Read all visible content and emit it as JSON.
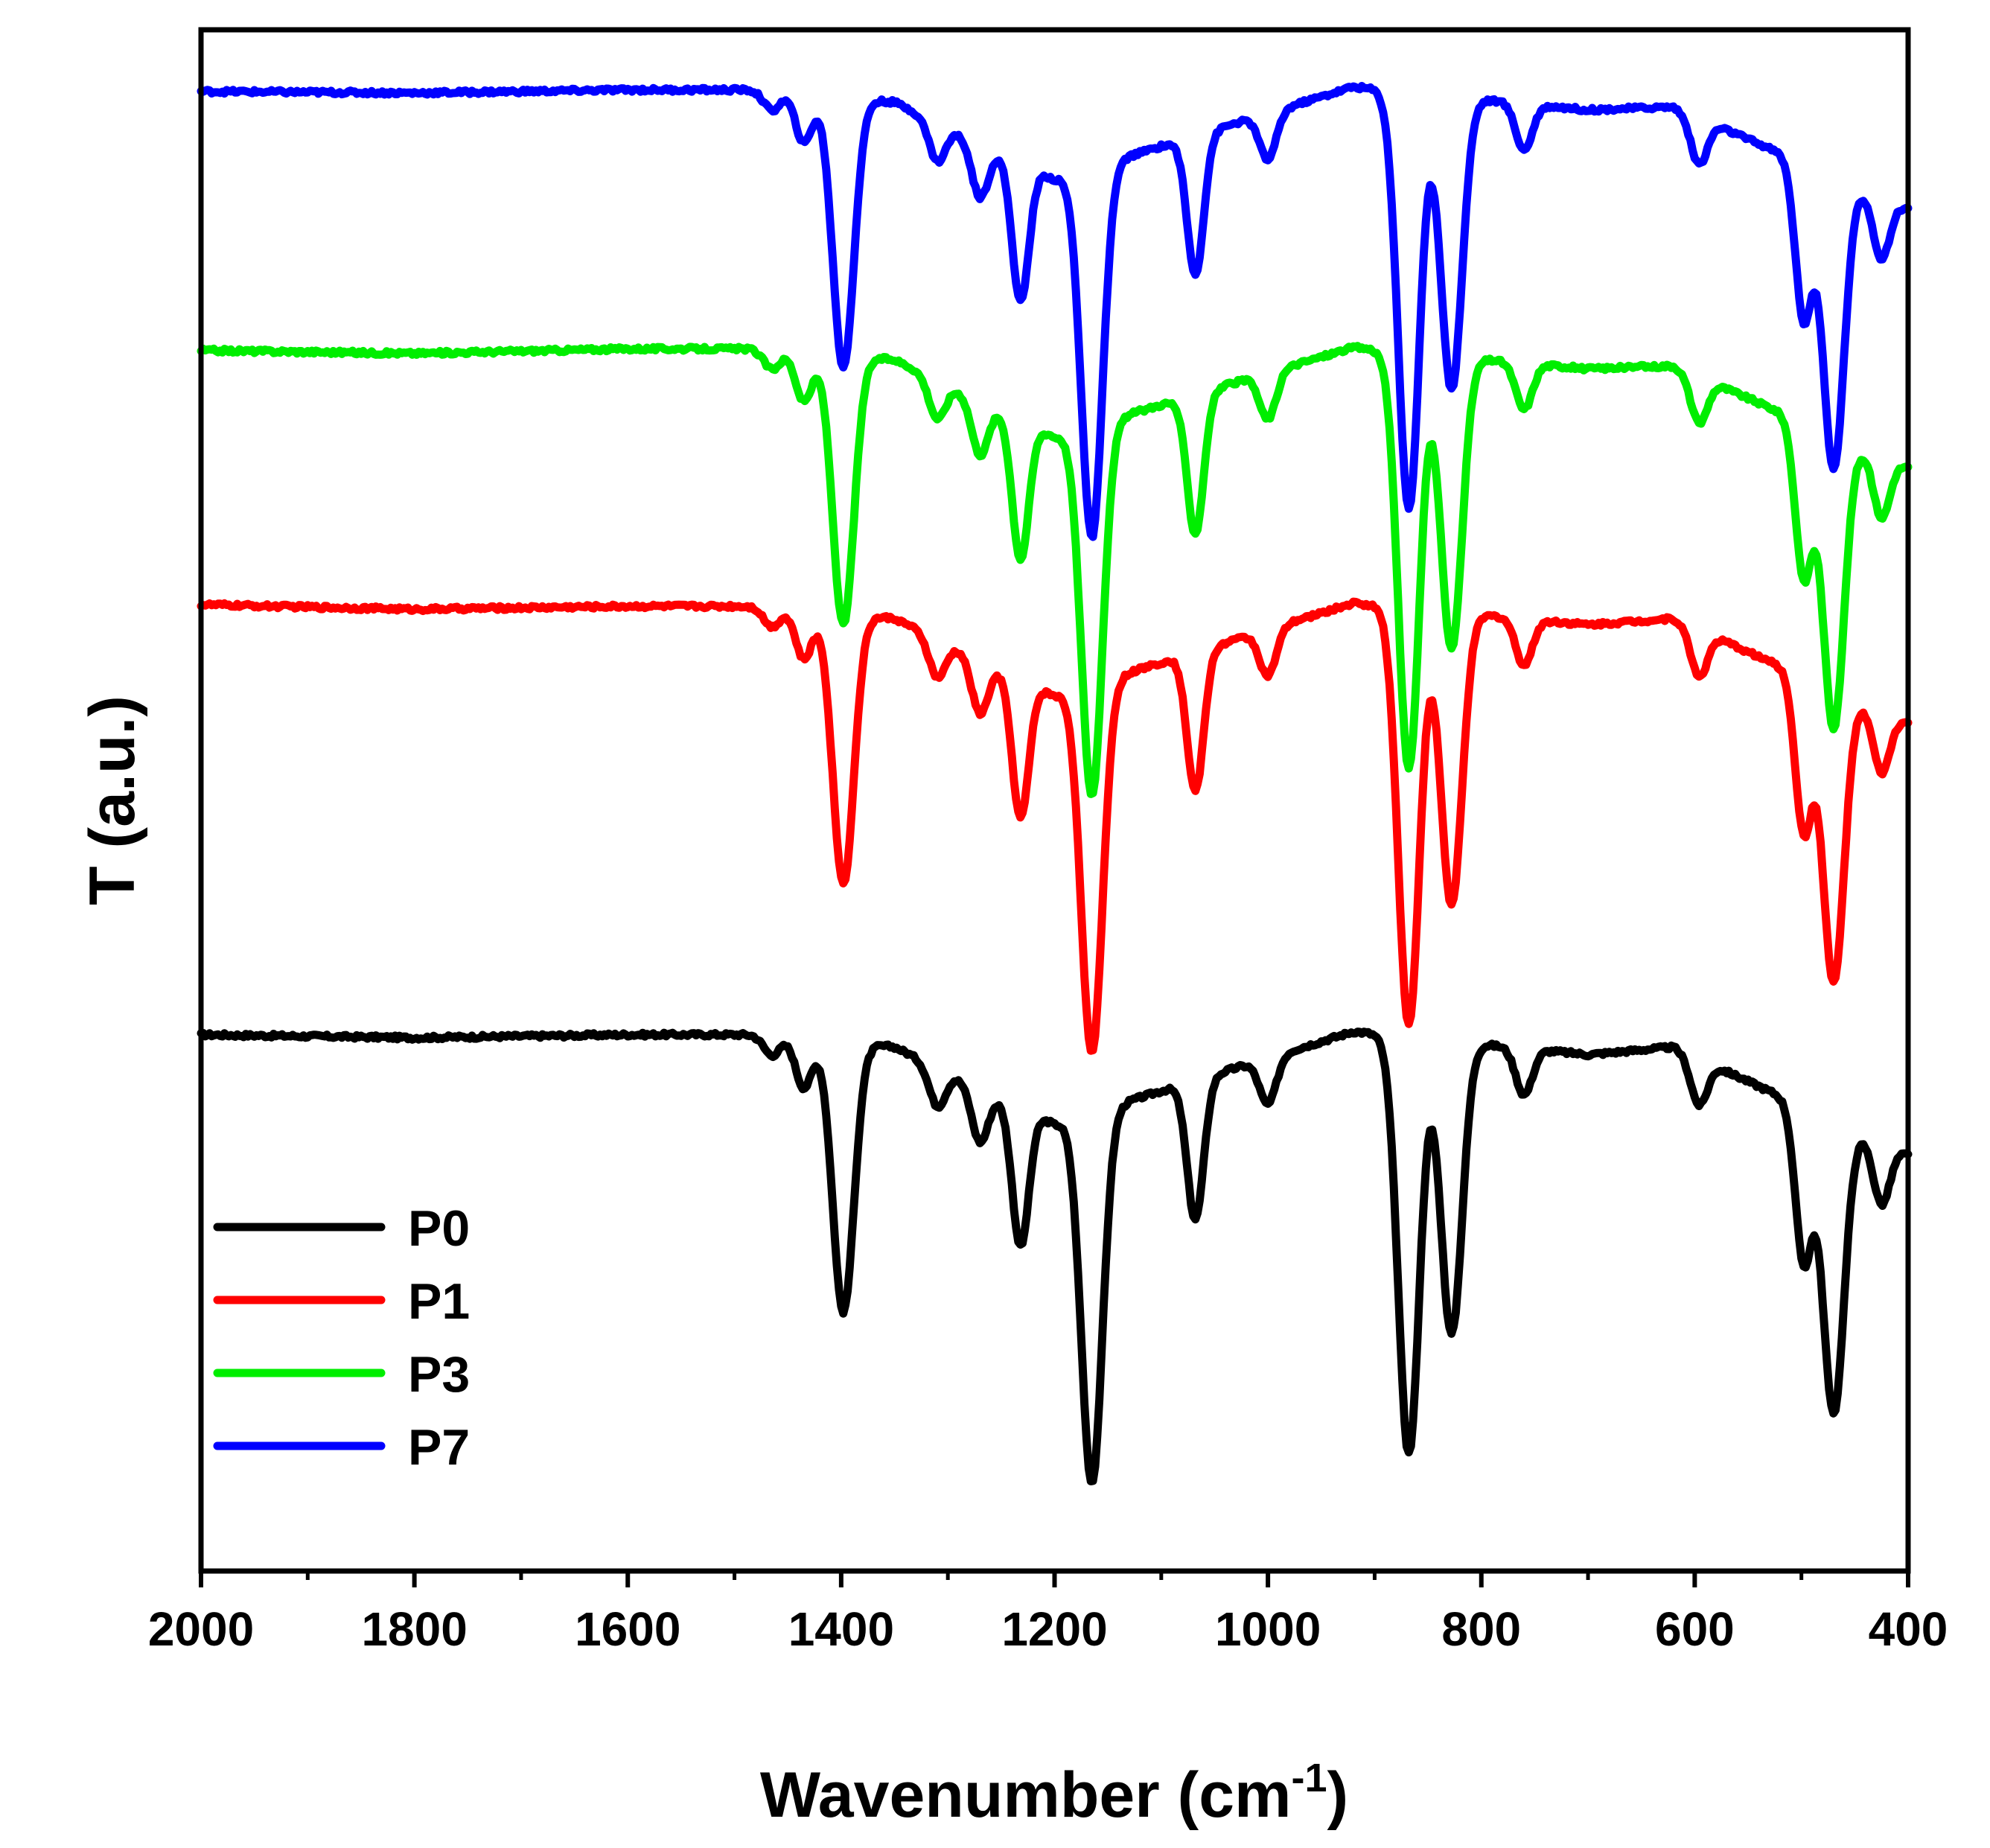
{
  "chart_data": {
    "type": "line",
    "title": "",
    "xlabel": "Wavenumber (cm",
    "xlabel_superscript": "-1",
    "xlabel_suffix": ")",
    "ylabel": "T (a.u.)",
    "xlim": [
      2000,
      400
    ],
    "ylim": [
      0,
      100
    ],
    "x_ticks": [
      2000,
      1800,
      1600,
      1400,
      1200,
      1000,
      800,
      600,
      400
    ],
    "y_ticks_shown": false,
    "grid": false,
    "legend_position": "bottom-left",
    "peaks": [
      {
        "x": 1465,
        "depth": 1.3
      },
      {
        "x": 1435,
        "depth": 3.2
      },
      {
        "x": 1398,
        "depth": 17.5
      },
      {
        "x": 1310,
        "depth": 2.5
      },
      {
        "x": 1270,
        "depth": 3.5
      },
      {
        "x": 1232,
        "depth": 9.0
      },
      {
        "x": 1165,
        "depth": 24.0
      },
      {
        "x": 1068,
        "depth": 9.0
      },
      {
        "x": 1000,
        "depth": 3.0
      },
      {
        "x": 868,
        "depth": 27.0
      },
      {
        "x": 828,
        "depth": 19.0
      },
      {
        "x": 760,
        "depth": 3.0
      },
      {
        "x": 596,
        "depth": 3.0
      },
      {
        "x": 498,
        "depth": 10.0
      },
      {
        "x": 470,
        "depth": 19.0
      },
      {
        "x": 425,
        "depth": 4.0
      }
    ],
    "series": [
      {
        "name": "P0",
        "color": "#000000",
        "offset": 36.5,
        "baseline": [
          [
            2000,
            34.8
          ],
          [
            1800,
            34.6
          ],
          [
            1600,
            34.8
          ],
          [
            1470,
            34.8
          ],
          [
            1350,
            34.0
          ],
          [
            1200,
            29.0
          ],
          [
            920,
            35.0
          ],
          [
            700,
            33.5
          ],
          [
            620,
            34.0
          ],
          [
            400,
            27.0
          ]
        ]
      },
      {
        "name": "P1",
        "color": "#ff0000",
        "offset": 62.8,
        "baseline": [
          [
            2000,
            62.7
          ],
          [
            1800,
            62.4
          ],
          [
            1600,
            62.6
          ],
          [
            1470,
            62.6
          ],
          [
            1350,
            61.8
          ],
          [
            1200,
            56.8
          ],
          [
            920,
            62.8
          ],
          [
            700,
            61.4
          ],
          [
            620,
            61.8
          ],
          [
            400,
            55.0
          ]
        ]
      },
      {
        "name": "P3",
        "color": "#00ee00",
        "offset": 79.2,
        "baseline": [
          [
            2000,
            79.2
          ],
          [
            1800,
            79.0
          ],
          [
            1600,
            79.3
          ],
          [
            1470,
            79.3
          ],
          [
            1350,
            78.6
          ],
          [
            1200,
            73.6
          ],
          [
            920,
            79.4
          ],
          [
            700,
            78.0
          ],
          [
            620,
            78.2
          ],
          [
            400,
            71.6
          ]
        ]
      },
      {
        "name": "P7",
        "color": "#0000ff",
        "offset": 96.0,
        "baseline": [
          [
            2000,
            96.0
          ],
          [
            1800,
            95.9
          ],
          [
            1600,
            96.1
          ],
          [
            1470,
            96.1
          ],
          [
            1350,
            95.3
          ],
          [
            1200,
            90.3
          ],
          [
            920,
            96.3
          ],
          [
            700,
            94.8
          ],
          [
            620,
            95.0
          ],
          [
            400,
            88.4
          ]
        ]
      }
    ]
  },
  "legend": [
    {
      "label": "P0",
      "color": "#000000"
    },
    {
      "label": "P1",
      "color": "#ff0000"
    },
    {
      "label": "P3",
      "color": "#00ee00"
    },
    {
      "label": "P7",
      "color": "#0000ff"
    }
  ]
}
